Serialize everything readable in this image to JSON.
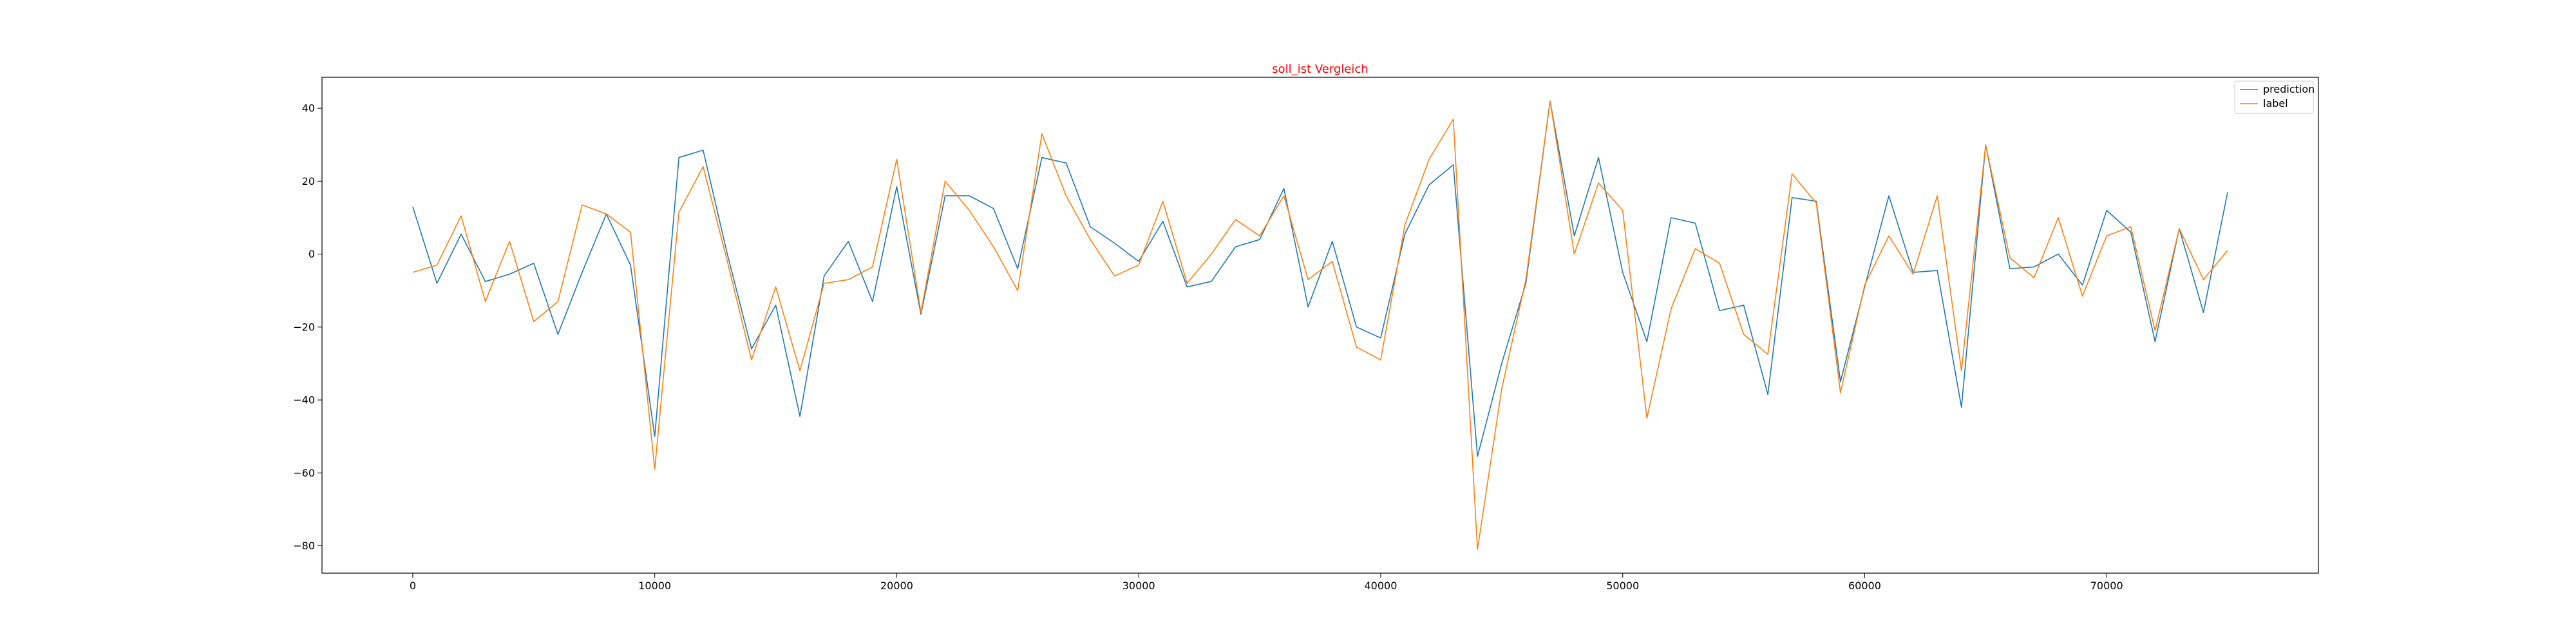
{
  "chart_data": {
    "type": "line",
    "title": "soll_ist Vergleich",
    "title_color": "#ff0000",
    "xlabel": "",
    "ylabel": "",
    "xlim": [
      -3750,
      78750
    ],
    "ylim": [
      -87.5,
      48.5
    ],
    "x_ticks": [
      0,
      10000,
      20000,
      30000,
      40000,
      50000,
      60000,
      70000
    ],
    "y_ticks": [
      -80,
      -60,
      -40,
      -20,
      0,
      20,
      40
    ],
    "grid": false,
    "legend_position": "top-right",
    "x": [
      0,
      1000,
      2000,
      3000,
      4000,
      5000,
      6000,
      7000,
      8000,
      9000,
      10000,
      11000,
      12000,
      13000,
      14000,
      15000,
      16000,
      17000,
      18000,
      19000,
      20000,
      21000,
      22000,
      23000,
      24000,
      25000,
      26000,
      27000,
      28000,
      29000,
      30000,
      31000,
      32000,
      33000,
      34000,
      35000,
      36000,
      37000,
      38000,
      39000,
      40000,
      41000,
      42000,
      43000,
      44000,
      45000,
      46000,
      47000,
      48000,
      49000,
      50000,
      51000,
      52000,
      53000,
      54000,
      55000,
      56000,
      57000,
      58000,
      59000,
      60000,
      61000,
      62000,
      63000,
      64000,
      65000,
      66000,
      67000,
      68000,
      69000,
      70000,
      71000,
      72000,
      73000,
      74000,
      75000
    ],
    "series": [
      {
        "name": "prediction",
        "color": "#1f77b4",
        "values": [
          13,
          -8,
          5.5,
          -7.5,
          -5.5,
          -2.5,
          -22,
          -5,
          11,
          -3,
          -50,
          26.5,
          28.5,
          0,
          -26,
          -14,
          -44.5,
          -6,
          3.5,
          -13,
          18.5,
          -16.5,
          16,
          16,
          12.5,
          -4,
          26.5,
          25,
          7.5,
          3,
          -2,
          9,
          -9,
          -7.5,
          2,
          4,
          18,
          -14.5,
          3.5,
          -20,
          -23,
          5.5,
          19,
          24.5,
          -55.5,
          -30,
          -8,
          42,
          5,
          26.5,
          -5,
          -24,
          10,
          8.5,
          -15.5,
          -14,
          -38.5,
          15.5,
          14.5,
          -35,
          -9,
          16,
          -5,
          -4.5,
          -42,
          30,
          -4,
          -3.5,
          0,
          -8.5,
          12,
          6,
          -24,
          7,
          -16,
          17
        ]
      },
      {
        "name": "label",
        "color": "#ff7f0e",
        "values": [
          -5,
          -3,
          10.5,
          -13,
          3.5,
          -18.5,
          -13,
          13.5,
          11,
          6,
          -59,
          11.5,
          24,
          -2,
          -29,
          -9,
          -32,
          -8,
          -7,
          -3.5,
          26,
          -16,
          20,
          12,
          2,
          -10,
          33,
          16,
          4,
          -6,
          -3,
          14.5,
          -8,
          0,
          9.5,
          5,
          16,
          -7,
          -2,
          -25.5,
          -29,
          8,
          26,
          37,
          -81,
          -37,
          -7,
          42,
          0,
          19.5,
          12,
          -45,
          -15,
          1.5,
          -2.5,
          -22,
          -27.5,
          22,
          14,
          -38,
          -8.5,
          5,
          -5.5,
          16,
          -32,
          30,
          -1,
          -6.5,
          10,
          -11.5,
          5,
          7.5,
          -21,
          7,
          -7,
          1
        ]
      }
    ]
  }
}
